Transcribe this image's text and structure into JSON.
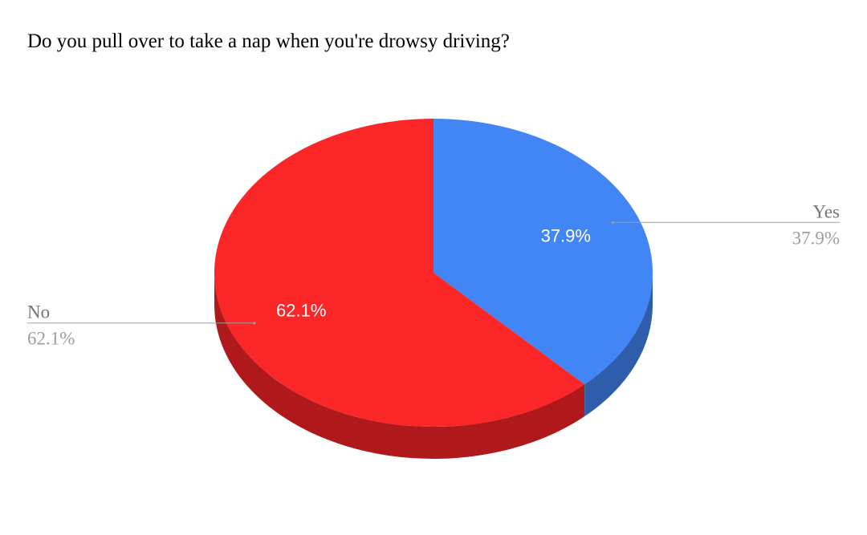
{
  "chart_data": {
    "type": "pie",
    "title": "Do you pull over to take a nap when you're drowsy driving?",
    "three_d": true,
    "slices": [
      {
        "label": "Yes",
        "value": 37.9,
        "percent_label": "37.9%",
        "color": "#4285f4",
        "side_color": "#2e5eab"
      },
      {
        "label": "No",
        "value": 62.1,
        "percent_label": "62.1%",
        "color": "#fb2628",
        "side_color": "#b0191b"
      }
    ],
    "legend_position": "labels-with-leader-lines"
  }
}
